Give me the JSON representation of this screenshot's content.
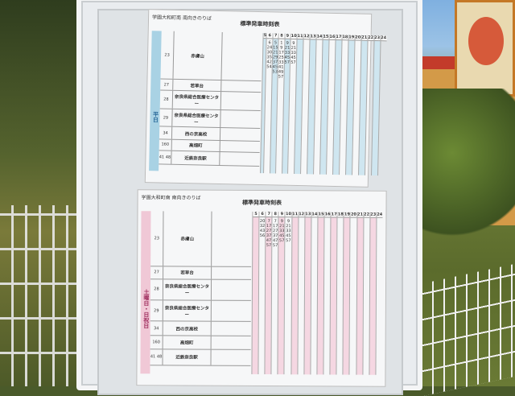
{
  "hours": [
    "5",
    "6",
    "7",
    "8",
    "9",
    "10",
    "11",
    "12",
    "13",
    "14",
    "15",
    "16",
    "17",
    "18",
    "19",
    "20",
    "21",
    "22",
    "23",
    "24"
  ],
  "weekday": {
    "stop_name": "学園大和町南 南向きのりば",
    "title": "標準発車時刻表",
    "day_label": "平日",
    "routes": [
      {
        "no": "23",
        "dest": "赤膚山"
      },
      {
        "no": "27",
        "dest": "若草台"
      },
      {
        "no": "28",
        "dest": "奈良県総合医療センター"
      },
      {
        "no": "29",
        "dest": "奈良県総合医療センター"
      },
      {
        "no": "34",
        "dest": "西の京高校"
      },
      {
        "no": "160",
        "dest": "高畑町"
      },
      {
        "no": "41 48",
        "dest": "近鉄奈良駅"
      }
    ],
    "route23_minutes": {
      "6": "6 24 30 35 42 54",
      "7": "5 15 21 29 37 45 53",
      "8": "1 9 17 25 33 41 49 57",
      "9": "9 21 33 45 57",
      "10": "9 21 33 45 57"
    }
  },
  "weekend": {
    "stop_name": "学園大和町南 南向きのりば",
    "title": "標準発車時刻表",
    "day_label": "土曜日・日祝日",
    "routes": [
      {
        "no": "23",
        "dest": "赤膚山"
      },
      {
        "no": "27",
        "dest": "若草台"
      },
      {
        "no": "28",
        "dest": "奈良県総合医療センター"
      },
      {
        "no": "29",
        "dest": "奈良県総合医療センター"
      },
      {
        "no": "34",
        "dest": "西の京高校"
      },
      {
        "no": "160",
        "dest": "高畑町"
      },
      {
        "no": "41 48",
        "dest": "近鉄奈良駅"
      }
    ],
    "route23_minutes": {
      "6": "20 32 43 56",
      "7": "7 17 27 37 47 57",
      "8": "7 17 27 37 47 57",
      "9": "9 21 33 45 57",
      "10": "9 21 33 45 57"
    }
  },
  "colors": {
    "weekday_accent": "#a9d2e4",
    "weekend_accent": "#f0c8d6"
  }
}
